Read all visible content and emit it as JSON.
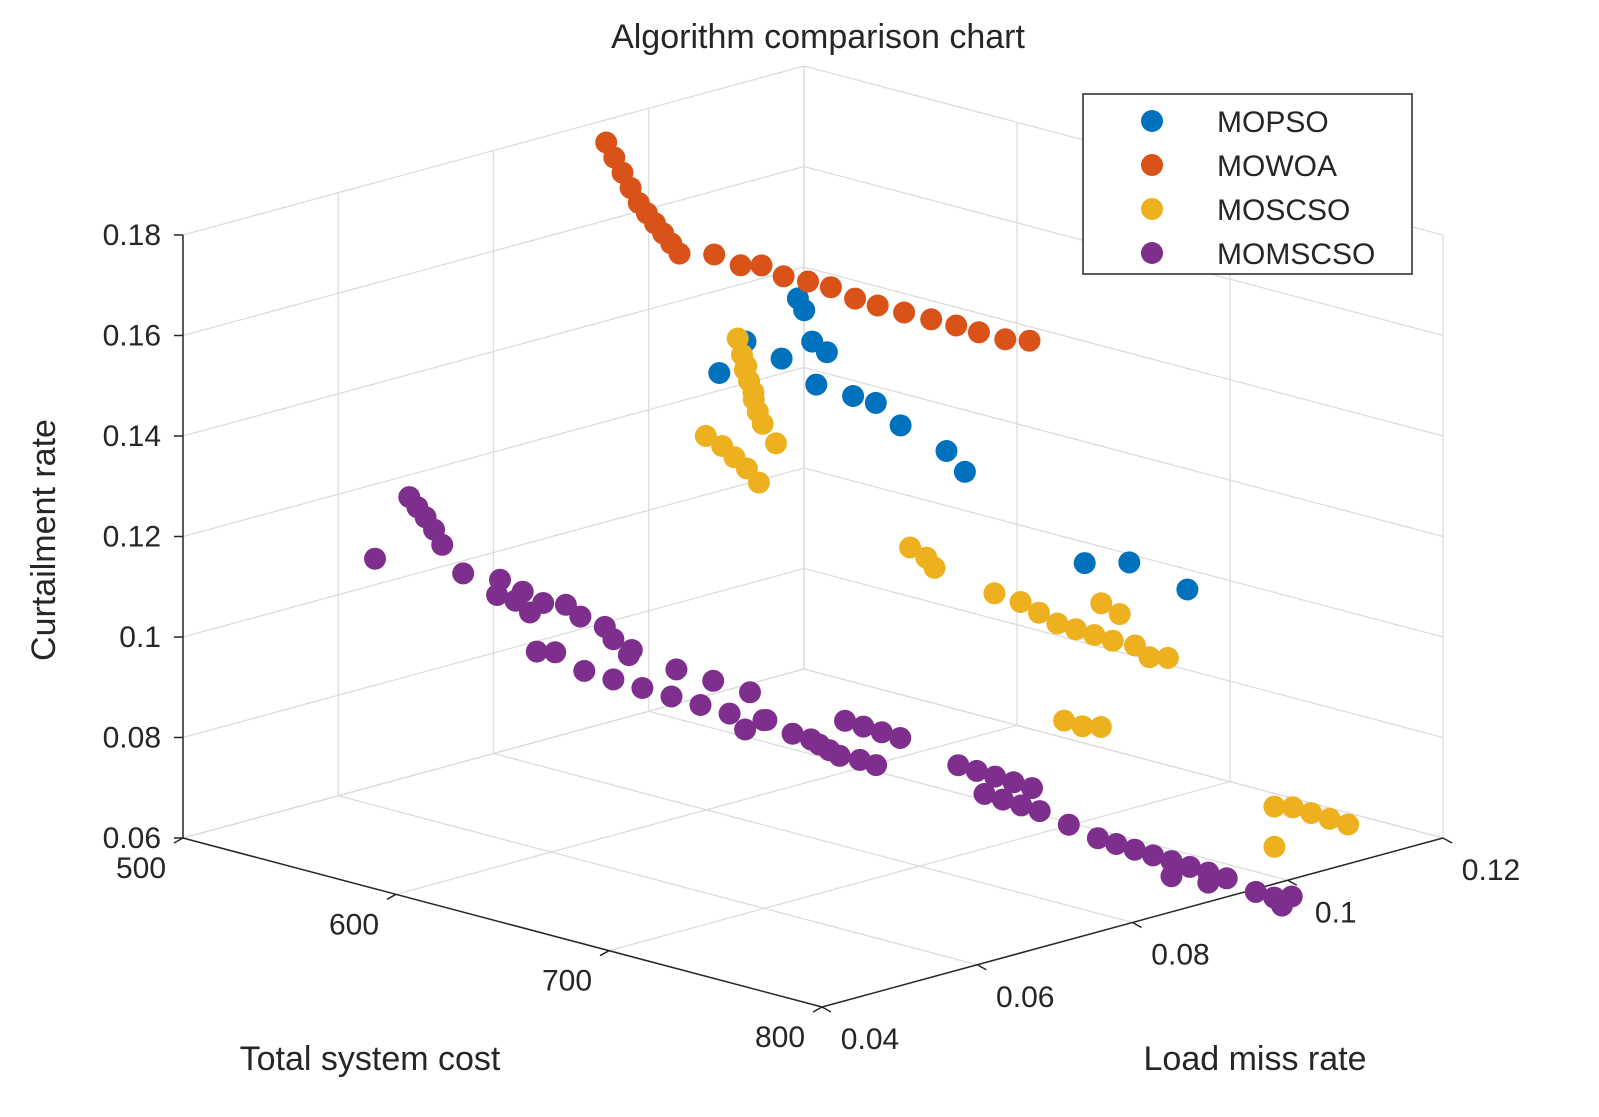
{
  "chart_data": {
    "type": "scatter",
    "title": "Algorithm comparison chart",
    "xlabel": "Total system cost",
    "ylabel": "Load miss rate",
    "zlabel": "Curtailment rate",
    "xlim": [
      500,
      800
    ],
    "ylim": [
      0.04,
      0.12
    ],
    "zlim": [
      0.06,
      0.18
    ],
    "x_ticks": [
      "500",
      "600",
      "700",
      "800"
    ],
    "y_ticks": [
      "0.04",
      "0.06",
      "0.08",
      "0.1",
      "0.12"
    ],
    "z_ticks": [
      "0.06",
      "0.08",
      "0.1",
      "0.12",
      "0.14",
      "0.16",
      "0.18"
    ],
    "grid": true,
    "legend_position": "top-right",
    "series": [
      {
        "name": "MOPSO",
        "color": "#0072BD",
        "points": [
          [
            570,
            0.1,
            0.15
          ],
          [
            573,
            0.1,
            0.148
          ],
          [
            576,
            0.1002,
            0.142
          ],
          [
            560,
            0.096,
            0.142
          ],
          [
            566,
            0.099,
            0.138
          ],
          [
            580,
            0.101,
            0.14
          ],
          [
            555,
            0.094,
            0.136
          ],
          [
            575,
            0.101,
            0.133
          ],
          [
            585,
            0.103,
            0.131
          ],
          [
            592,
            0.104,
            0.13
          ],
          [
            600,
            0.105,
            0.126
          ],
          [
            607,
            0.109,
            0.12
          ],
          [
            612,
            0.11,
            0.116
          ],
          [
            650,
            0.115,
            0.1
          ],
          [
            660,
            0.118,
            0.1
          ],
          [
            680,
            0.12,
            0.096
          ]
        ]
      },
      {
        "name": "MOWOA",
        "color": "#D95319",
        "points": [
          [
            511,
            0.0915,
            0.178
          ],
          [
            513,
            0.092,
            0.175
          ],
          [
            515,
            0.0925,
            0.172
          ],
          [
            517,
            0.093,
            0.169
          ],
          [
            519,
            0.0935,
            0.166
          ],
          [
            521,
            0.094,
            0.164
          ],
          [
            523,
            0.0945,
            0.162
          ],
          [
            525,
            0.095,
            0.16
          ],
          [
            527,
            0.0955,
            0.158
          ],
          [
            529,
            0.096,
            0.156
          ],
          [
            538,
            0.098,
            0.156
          ],
          [
            545,
            0.0995,
            0.154
          ],
          [
            550,
            0.1008,
            0.154
          ],
          [
            556,
            0.102,
            0.152
          ],
          [
            562,
            0.1035,
            0.151
          ],
          [
            568,
            0.1048,
            0.15
          ],
          [
            575,
            0.106,
            0.148
          ],
          [
            582,
            0.107,
            0.147
          ],
          [
            590,
            0.1082,
            0.146
          ],
          [
            598,
            0.1095,
            0.145
          ],
          [
            605,
            0.1108,
            0.144
          ],
          [
            612,
            0.1118,
            0.143
          ],
          [
            620,
            0.113,
            0.142
          ],
          [
            627,
            0.1142,
            0.142
          ]
        ]
      },
      {
        "name": "MOSCSO",
        "color": "#EDB120",
        "points": [
          [
            560,
            0.095,
            0.143
          ],
          [
            562,
            0.095,
            0.14
          ],
          [
            564,
            0.095,
            0.138
          ],
          [
            567,
            0.094,
            0.138
          ],
          [
            569,
            0.094,
            0.136
          ],
          [
            571,
            0.094,
            0.134
          ],
          [
            573,
            0.0935,
            0.133
          ],
          [
            576,
            0.0932,
            0.131
          ],
          [
            579,
            0.093,
            0.129
          ],
          [
            586,
            0.0928,
            0.126
          ],
          [
            576,
            0.0865,
            0.129
          ],
          [
            580,
            0.0875,
            0.127
          ],
          [
            584,
            0.088,
            0.125
          ],
          [
            588,
            0.0885,
            0.123
          ],
          [
            590,
            0.0895,
            0.12
          ],
          [
            630,
            0.098,
            0.108
          ],
          [
            634,
            0.099,
            0.106
          ],
          [
            636,
            0.0995,
            0.104
          ],
          [
            655,
            0.102,
            0.1
          ],
          [
            660,
            0.104,
            0.098
          ],
          [
            665,
            0.105,
            0.096
          ],
          [
            670,
            0.106,
            0.094
          ],
          [
            675,
            0.107,
            0.093
          ],
          [
            680,
            0.108,
            0.092
          ],
          [
            685,
            0.109,
            0.091
          ],
          [
            676,
            0.11,
            0.097
          ],
          [
            681,
            0.111,
            0.095
          ],
          [
            690,
            0.1105,
            0.09
          ],
          [
            695,
            0.111,
            0.088
          ],
          [
            700,
            0.112,
            0.088
          ],
          [
            695,
            0.1,
            0.08
          ],
          [
            700,
            0.101,
            0.079
          ],
          [
            705,
            0.102,
            0.079
          ],
          [
            750,
            0.112,
            0.064
          ],
          [
            755,
            0.113,
            0.064
          ],
          [
            760,
            0.114,
            0.063
          ],
          [
            765,
            0.115,
            0.062
          ],
          [
            770,
            0.116,
            0.061
          ],
          [
            750,
            0.112,
            0.056
          ]
        ]
      },
      {
        "name": "MOMSCSO",
        "color": "#7E2F8E",
        "points": [
          [
            537,
            0.059,
            0.124
          ],
          [
            539,
            0.0595,
            0.122
          ],
          [
            541,
            0.06,
            0.12
          ],
          [
            545,
            0.06,
            0.118
          ],
          [
            547,
            0.0605,
            0.115
          ],
          [
            530,
            0.0565,
            0.112
          ],
          [
            555,
            0.061,
            0.11
          ],
          [
            565,
            0.063,
            0.109
          ],
          [
            572,
            0.064,
            0.107
          ],
          [
            578,
            0.065,
            0.105
          ],
          [
            585,
            0.066,
            0.105
          ],
          [
            590,
            0.0665,
            0.103
          ],
          [
            596,
            0.068,
            0.101
          ],
          [
            600,
            0.068,
            0.099
          ],
          [
            605,
            0.069,
            0.097
          ],
          [
            575,
            0.065,
            0.095
          ],
          [
            580,
            0.066,
            0.095
          ],
          [
            590,
            0.067,
            0.092
          ],
          [
            600,
            0.068,
            0.091
          ],
          [
            610,
            0.069,
            0.09
          ],
          [
            620,
            0.07,
            0.089
          ],
          [
            630,
            0.071,
            0.088
          ],
          [
            640,
            0.072,
            0.087
          ],
          [
            650,
            0.074,
            0.086
          ],
          [
            655,
            0.076,
            0.083
          ],
          [
            660,
            0.077,
            0.082
          ],
          [
            662,
            0.0775,
            0.081
          ],
          [
            665,
            0.078,
            0.08
          ],
          [
            668,
            0.0785,
            0.079
          ],
          [
            672,
            0.08,
            0.078
          ],
          [
            676,
            0.081,
            0.077
          ],
          [
            640,
            0.074,
            0.083
          ],
          [
            645,
            0.075,
            0.085
          ],
          [
            665,
            0.08,
            0.085
          ],
          [
            670,
            0.081,
            0.084
          ],
          [
            675,
            0.082,
            0.083
          ],
          [
            680,
            0.083,
            0.082
          ],
          [
            700,
            0.085,
            0.078
          ],
          [
            705,
            0.086,
            0.077
          ],
          [
            710,
            0.087,
            0.076
          ],
          [
            715,
            0.088,
            0.075
          ],
          [
            720,
            0.089,
            0.074
          ],
          [
            705,
            0.087,
            0.072
          ],
          [
            710,
            0.088,
            0.071
          ],
          [
            715,
            0.089,
            0.07
          ],
          [
            720,
            0.09,
            0.069
          ],
          [
            730,
            0.091,
            0.067
          ],
          [
            740,
            0.092,
            0.065
          ],
          [
            745,
            0.093,
            0.064
          ],
          [
            750,
            0.094,
            0.063
          ],
          [
            755,
            0.095,
            0.062
          ],
          [
            760,
            0.096,
            0.061
          ],
          [
            765,
            0.097,
            0.06
          ],
          [
            770,
            0.098,
            0.059
          ],
          [
            775,
            0.099,
            0.058
          ],
          [
            785,
            0.1,
            0.056
          ],
          [
            790,
            0.101,
            0.055
          ],
          [
            760,
            0.096,
            0.058
          ],
          [
            770,
            0.098,
            0.057
          ],
          [
            790,
            0.102,
            0.053
          ],
          [
            560,
            0.064,
            0.105
          ],
          [
            565,
            0.065,
            0.104
          ],
          [
            570,
            0.0655,
            0.102
          ],
          [
            600,
            0.07,
            0.095
          ],
          [
            615,
            0.072,
            0.093
          ],
          [
            625,
            0.074,
            0.091
          ],
          [
            635,
            0.076,
            0.089
          ],
          [
            780,
            0.106,
            0.052
          ]
        ]
      }
    ]
  }
}
